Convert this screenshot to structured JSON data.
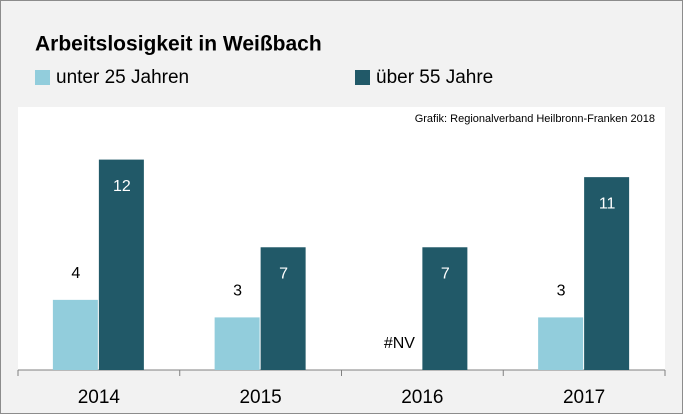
{
  "chart_data": {
    "type": "bar",
    "title": "Arbeitslosigkeit in Weißbach",
    "annotation": "Grafik: Regionalverband Heilbronn-Franken 2018",
    "categories": [
      "2014",
      "2015",
      "2016",
      "2017"
    ],
    "series": [
      {
        "name": "unter 25 Jahren",
        "color": "#92cddc",
        "values": [
          4,
          3,
          null,
          3
        ],
        "value_labels": [
          "4",
          "3",
          "#NV",
          "3"
        ]
      },
      {
        "name": "über 55 Jahre",
        "color": "#215968",
        "values": [
          12,
          7,
          7,
          11
        ]
      }
    ],
    "ylim": [
      0,
      15
    ]
  }
}
